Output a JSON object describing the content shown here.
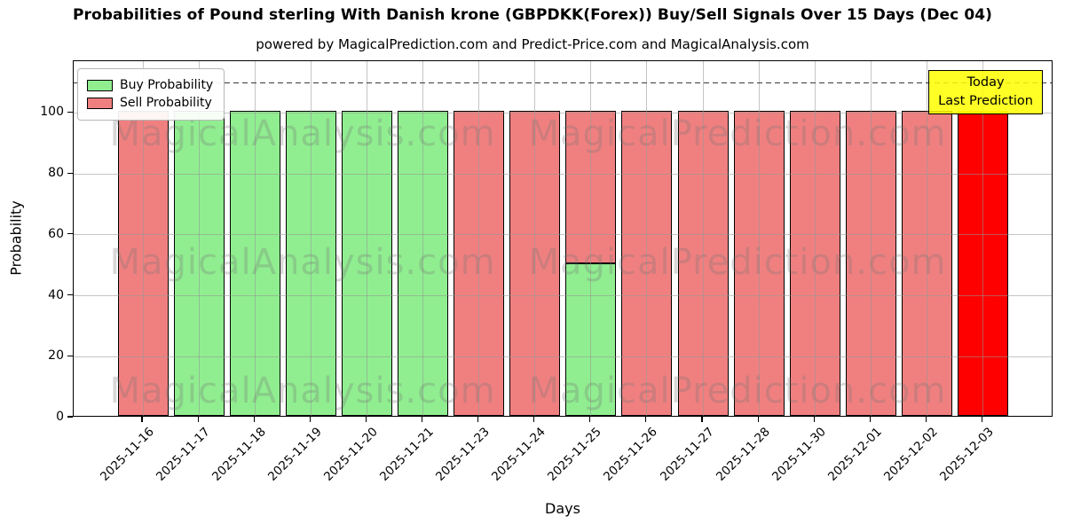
{
  "title": "Probabilities of Pound sterling With Danish krone (GBPDKK(Forex)) Buy/Sell Signals Over 15 Days (Dec 04)",
  "subtitle": "powered by MagicalPrediction.com and Predict-Price.com and MagicalAnalysis.com",
  "axes": {
    "xlabel": "Days",
    "ylabel": "Probability",
    "yticks": [
      0,
      20,
      40,
      60,
      80,
      100
    ]
  },
  "legend": {
    "position": "upper left",
    "items": [
      {
        "label": "Buy Probability",
        "color": "#90ee90"
      },
      {
        "label": "Sell Probability",
        "color": "#f08080"
      }
    ]
  },
  "annotation": {
    "line1": "Today",
    "line2": "Last Prediction",
    "bg_color": "#ffff00"
  },
  "watermarks": [
    "MagicalAnalysis.com",
    "MagicalPrediction.com"
  ],
  "chart_data": {
    "type": "bar",
    "stacked": true,
    "title": "Probabilities of Pound sterling With Danish krone (GBPDKK(Forex)) Buy/Sell Signals Over 15 Days (Dec 04)",
    "xlabel": "Days",
    "ylabel": "Probability",
    "ylim": [
      0,
      117
    ],
    "yticks": [
      0,
      20,
      40,
      60,
      80,
      100
    ],
    "grid": true,
    "dashed_line_y": 110,
    "categories": [
      "2025-11-16",
      "2025-11-17",
      "2025-11-18",
      "2025-11-19",
      "2025-11-20",
      "2025-11-21",
      "2025-11-23",
      "2025-11-24",
      "2025-11-25",
      "2025-11-26",
      "2025-11-27",
      "2025-11-28",
      "2025-11-30",
      "2025-12-01",
      "2025-12-02",
      "2025-12-03"
    ],
    "series": [
      {
        "name": "Buy Probability",
        "color": "#90ee90",
        "values": [
          0,
          100,
          100,
          100,
          100,
          100,
          0,
          0,
          50,
          0,
          0,
          0,
          0,
          0,
          0,
          0
        ]
      },
      {
        "name": "Sell Probability",
        "color": "#f08080",
        "values": [
          100,
          0,
          0,
          0,
          0,
          0,
          100,
          100,
          50,
          100,
          100,
          100,
          100,
          100,
          100,
          100
        ]
      }
    ],
    "today_index": 15,
    "today_color": "#ff0000",
    "today_edge_color": "#ffa500"
  }
}
